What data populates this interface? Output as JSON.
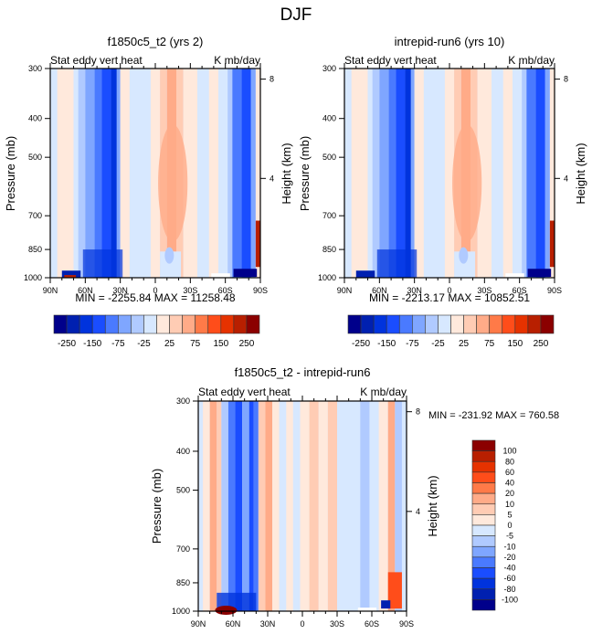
{
  "figure": {
    "title": "DJF"
  },
  "colors": {
    "panel_scale": [
      "#00008b",
      "#0020b0",
      "#0033dd",
      "#1a4dff",
      "#4a7aff",
      "#7fa6ff",
      "#b0caff",
      "#d7e8ff",
      "#ffe9dc",
      "#ffccb4",
      "#ffab88",
      "#ff7a48",
      "#ff4d1a",
      "#e63200",
      "#b81f00",
      "#8b0000"
    ],
    "frame": "#000000"
  },
  "chart_data": [
    {
      "type": "heatmap",
      "title": "f1850c5_t2 (yrs 2)",
      "left_subtitle": "Stat eddy vert heat",
      "right_subtitle": "K mb/day",
      "xlabel": "",
      "ylabel": "Pressure (mb)",
      "y2label": "Height (km)",
      "x_ticks": [
        "90N",
        "60N",
        "30N",
        "0",
        "30S",
        "60S",
        "90S"
      ],
      "y_ticks": [
        "300",
        "400",
        "500",
        "700",
        "850",
        "1000"
      ],
      "y_tick_values": [
        300,
        400,
        500,
        700,
        850,
        1000
      ],
      "y2_ticks": [
        "8",
        "4"
      ],
      "y2_tick_values": [
        8,
        4
      ],
      "ylim": [
        1000,
        300
      ],
      "xlim": [
        90,
        -90
      ],
      "stats": "MIN = -2255.84  MAX = 11258.48",
      "levels": [
        -250,
        -200,
        -150,
        -100,
        -75,
        -50,
        -25,
        0,
        25,
        50,
        75,
        100,
        150,
        200,
        250
      ],
      "colorbar_labels": [
        "-250",
        "-150",
        "-75",
        "-25",
        "25",
        "75",
        "150",
        "250"
      ],
      "colorbar_orientation": "horizontal"
    },
    {
      "type": "heatmap",
      "title": "intrepid-run6 (yrs 10)",
      "left_subtitle": "Stat eddy vert heat",
      "right_subtitle": "K mb/day",
      "xlabel": "",
      "ylabel": "Pressure (mb)",
      "y2label": "Height (km)",
      "x_ticks": [
        "90N",
        "60N",
        "30N",
        "0",
        "30S",
        "60S",
        "90S"
      ],
      "y_ticks": [
        "300",
        "400",
        "500",
        "700",
        "850",
        "1000"
      ],
      "y_tick_values": [
        300,
        400,
        500,
        700,
        850,
        1000
      ],
      "y2_ticks": [
        "8",
        "4"
      ],
      "y2_tick_values": [
        8,
        4
      ],
      "ylim": [
        1000,
        300
      ],
      "xlim": [
        90,
        -90
      ],
      "stats": "MIN = -2213.17  MAX = 10852.51",
      "levels": [
        -250,
        -200,
        -150,
        -100,
        -75,
        -50,
        -25,
        0,
        25,
        50,
        75,
        100,
        150,
        200,
        250
      ],
      "colorbar_labels": [
        "-250",
        "-150",
        "-75",
        "-25",
        "25",
        "75",
        "150",
        "250"
      ],
      "colorbar_orientation": "horizontal"
    },
    {
      "type": "heatmap",
      "title": "f1850c5_t2 - intrepid-run6",
      "left_subtitle": "Stat eddy vert heat",
      "right_subtitle": "K mb/day",
      "xlabel": "",
      "ylabel": "Pressure (mb)",
      "y2label": "Height (km)",
      "x_ticks": [
        "90N",
        "60N",
        "30N",
        "0",
        "30S",
        "60S",
        "90S"
      ],
      "y_ticks": [
        "300",
        "400",
        "500",
        "700",
        "850",
        "1000"
      ],
      "y_tick_values": [
        300,
        400,
        500,
        700,
        850,
        1000
      ],
      "y2_ticks": [
        "8",
        "4"
      ],
      "y2_tick_values": [
        8,
        4
      ],
      "ylim": [
        1000,
        300
      ],
      "xlim": [
        90,
        -90
      ],
      "stats": "MIN = -231.92  MAX = 760.58",
      "levels": [
        -100,
        -80,
        -60,
        -40,
        -20,
        -10,
        -5,
        0,
        5,
        10,
        20,
        40,
        60,
        80,
        100
      ],
      "colorbar_labels": [
        "100",
        "80",
        "60",
        "40",
        "20",
        "10",
        "5",
        "0",
        "-5",
        "-10",
        "-20",
        "-40",
        "-60",
        "-80",
        "-100"
      ],
      "colorbar_orientation": "vertical"
    }
  ]
}
